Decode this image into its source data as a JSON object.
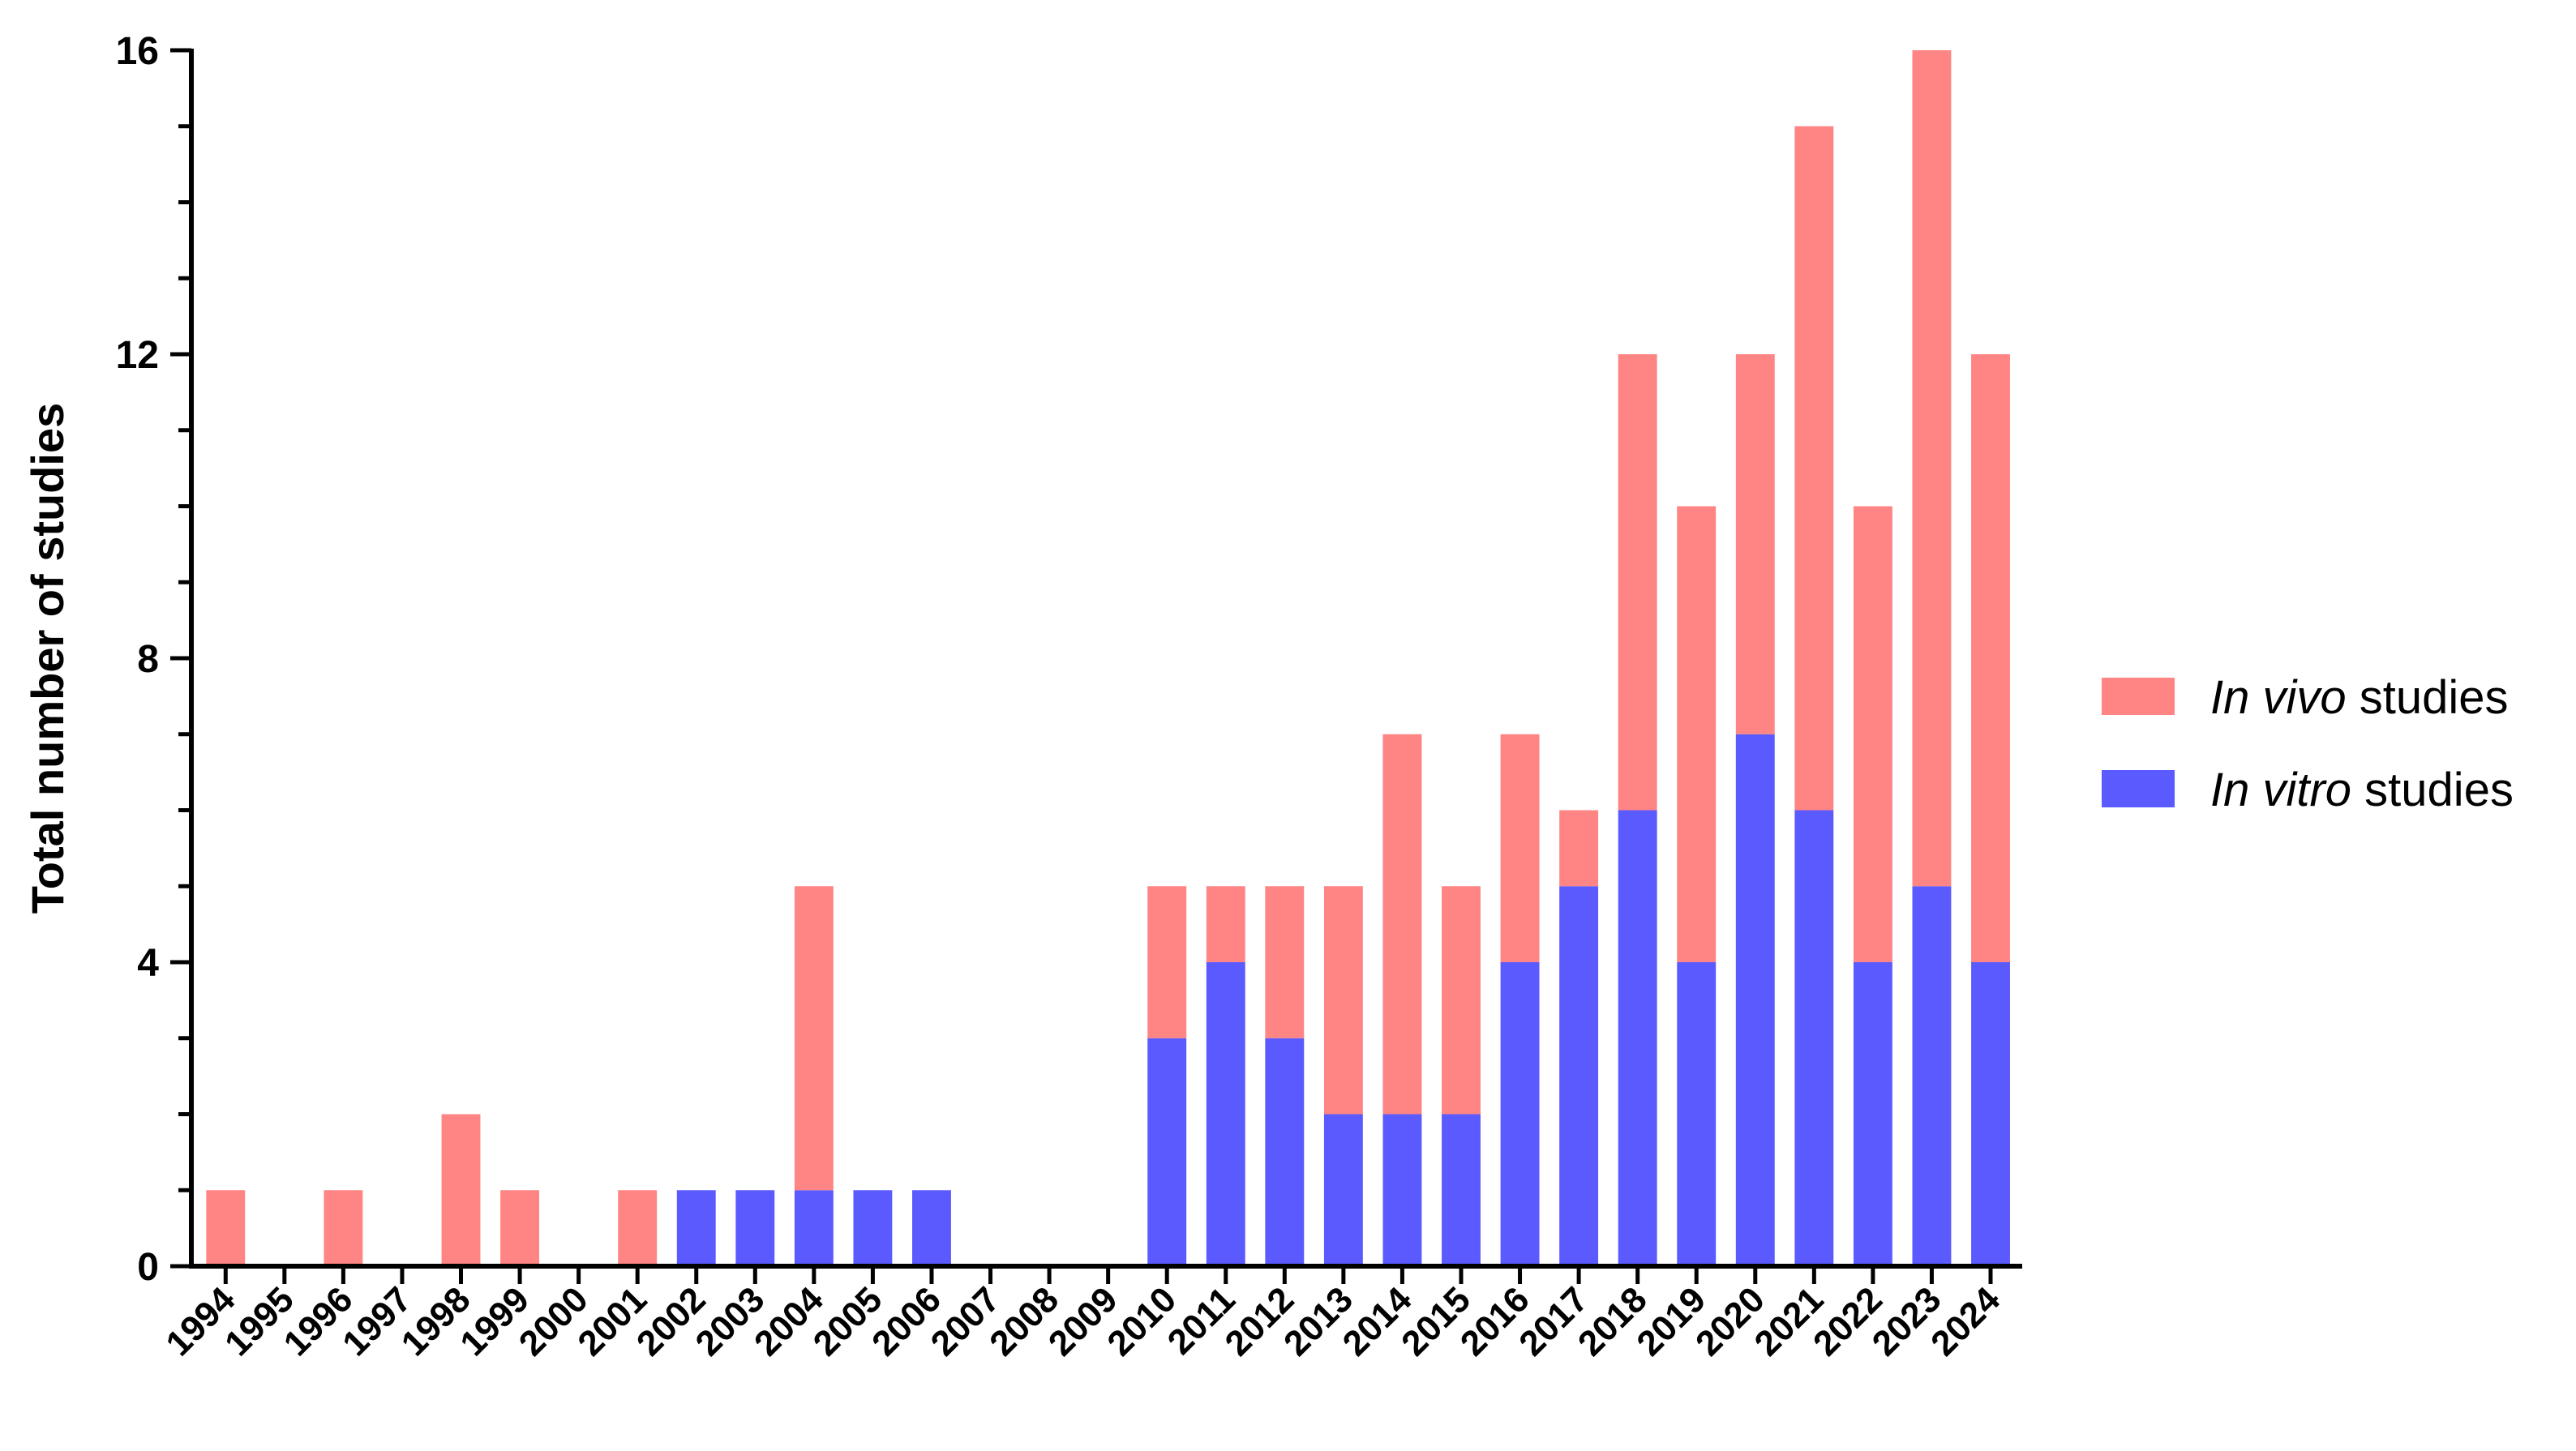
{
  "chart_data": {
    "type": "bar",
    "stacked": true,
    "title": "",
    "xlabel": "",
    "ylabel": "Total number of studies",
    "ylim": [
      0,
      16
    ],
    "yticks": [
      0,
      4,
      8,
      12,
      16
    ],
    "y_minor_step": 1,
    "grid": false,
    "legend_position": "right",
    "categories": [
      "1994",
      "1995",
      "1996",
      "1997",
      "1998",
      "1999",
      "2000",
      "2001",
      "2002",
      "2003",
      "2004",
      "2005",
      "2006",
      "2007",
      "2008",
      "2009",
      "2010",
      "2011",
      "2012",
      "2013",
      "2014",
      "2015",
      "2016",
      "2017",
      "2018",
      "2019",
      "2020",
      "2021",
      "2022",
      "2023",
      "2024"
    ],
    "series": [
      {
        "name": "In vitro studies",
        "name_italic": "In vitro",
        "name_rest": " studies",
        "color": "#5a5aff",
        "values": [
          0,
          0,
          0,
          0,
          0,
          0,
          0,
          0,
          1,
          1,
          1,
          1,
          1,
          0,
          0,
          0,
          3,
          4,
          3,
          2,
          2,
          2,
          4,
          5,
          6,
          4,
          7,
          6,
          4,
          5,
          4
        ]
      },
      {
        "name": "In vivo studies",
        "name_italic": "In vivo",
        "name_rest": " studies",
        "color": "#ff8484",
        "values": [
          1,
          0,
          1,
          0,
          2,
          1,
          0,
          1,
          0,
          0,
          4,
          0,
          0,
          0,
          0,
          0,
          2,
          1,
          2,
          3,
          5,
          3,
          3,
          1,
          6,
          6,
          5,
          9,
          6,
          11,
          8
        ]
      }
    ],
    "legend_order": [
      "In vivo studies",
      "In vitro studies"
    ]
  }
}
